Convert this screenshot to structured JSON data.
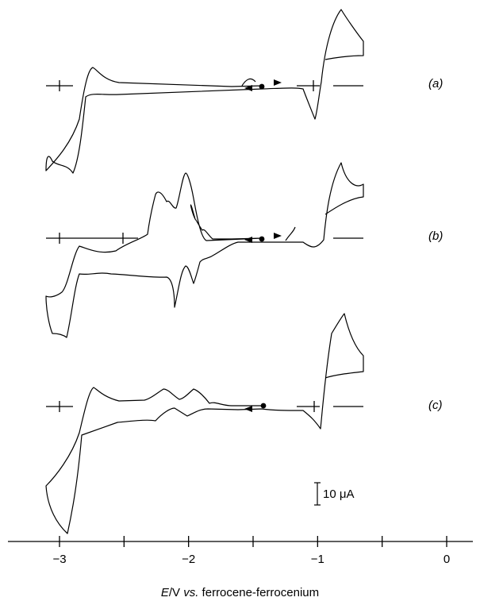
{
  "chart_data": {
    "type": "line",
    "title": "",
    "xlabel_parts": [
      "E",
      "/V ",
      "vs.",
      " ferrocene-ferrocenium"
    ],
    "ylabel": "",
    "xlim": [
      -3.35,
      0.25
    ],
    "x_ticks": [
      -3,
      -2.5,
      -2,
      -1.5,
      -1,
      -0.5,
      0
    ],
    "x_tick_labels": [
      "−3",
      "",
      "−2",
      "",
      "−1",
      "",
      "0"
    ],
    "scale_bar": {
      "label": "10 μA",
      "value_uA": 10
    },
    "legend": "none",
    "grid": false,
    "series": [
      {
        "name": "(a)",
        "start_potential": -1.4,
        "oxidation_peaks": [
          -0.88
        ],
        "return_peaks": [
          -1.05
        ],
        "reduction_peaks": [
          -2.85
        ],
        "anodic_return_peaks": [
          -2.75
        ]
      },
      {
        "name": "(b)",
        "start_potential": -1.4,
        "oxidation_peaks": [
          -0.88
        ],
        "return_peaks": [
          -1.03
        ],
        "reduction_peaks": [
          -1.95,
          -2.28,
          -2.9
        ],
        "anodic_return_peaks": [
          -1.9,
          -2.22,
          -2.82
        ]
      },
      {
        "name": "(c)",
        "start_potential": -1.4,
        "oxidation_peaks": [
          -0.88
        ],
        "return_peaks": [
          -1.03
        ],
        "reduction_peaks": [
          -1.95,
          -2.28,
          -2.92
        ],
        "anodic_return_peaks": [
          -1.93,
          -2.22,
          -2.82
        ]
      }
    ]
  }
}
